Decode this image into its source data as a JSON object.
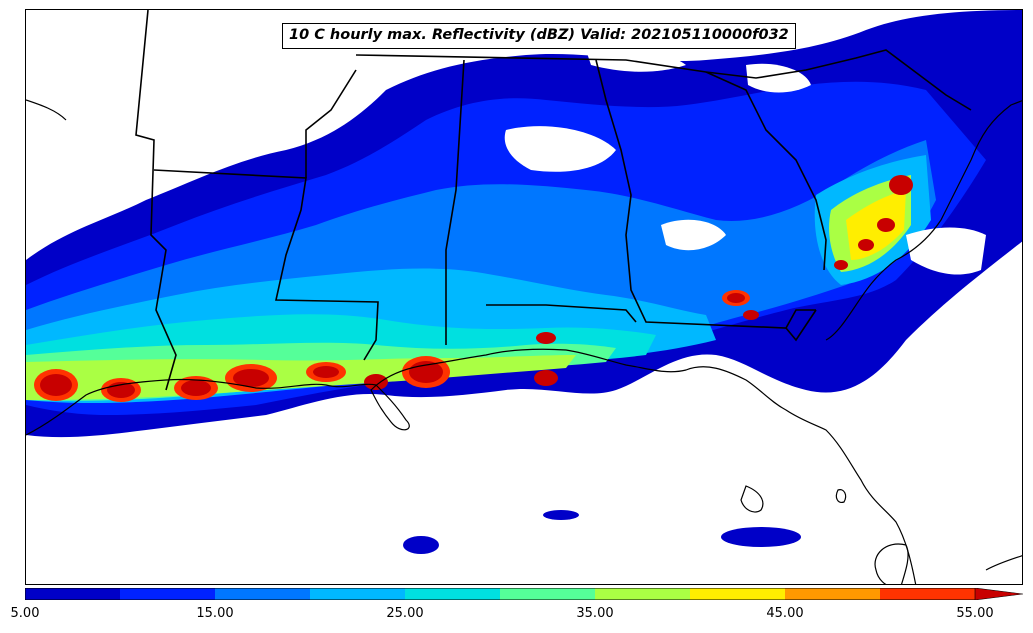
{
  "title": "10 C hourly max. Reflectivity (dBZ) Valid: 202105110000f032",
  "colorbar": {
    "min": 5,
    "max": 55,
    "extend": "max",
    "levels": [
      5,
      10,
      15,
      20,
      25,
      30,
      35,
      40,
      45,
      50,
      55
    ],
    "colors": [
      "#0000c8",
      "#0022ff",
      "#0077ff",
      "#00b8ff",
      "#00e0e0",
      "#55ff99",
      "#aaff44",
      "#ffee00",
      "#ff9900",
      "#ff3300",
      "#c80000"
    ],
    "tick_labels": [
      "5.00",
      "15.00",
      "25.00",
      "35.00",
      "45.00",
      "55.00"
    ],
    "tick_values": [
      5,
      15,
      25,
      35,
      45,
      55
    ]
  },
  "map": {
    "region": "Southeastern United States",
    "land_color": "#ffffff",
    "boundary_color": "#000000"
  }
}
